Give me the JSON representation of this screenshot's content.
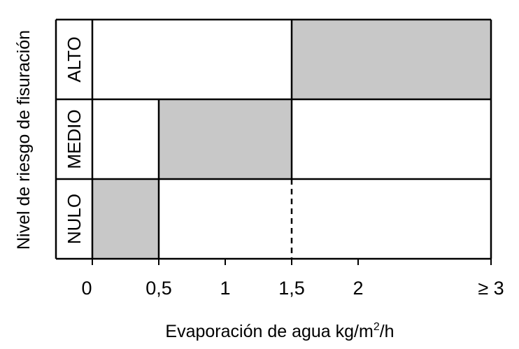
{
  "chart_data": {
    "type": "heatmap",
    "xlabel": "Evaporación de agua kg/m",
    "xlabel_sup": "2",
    "xlabel_tail": "/h",
    "ylabel": "Nivel de riesgo de fisuración",
    "x_ticks": [
      {
        "value": 0,
        "label": "0"
      },
      {
        "value": 0.5,
        "label": "0,5"
      },
      {
        "value": 1,
        "label": "1"
      },
      {
        "value": 1.5,
        "label": "1,5"
      },
      {
        "value": 2,
        "label": "2"
      },
      {
        "value": 3,
        "label": "≥ 3"
      }
    ],
    "xlim": [
      0,
      3
    ],
    "levels": [
      "ALTO",
      "MEDIO",
      "NULO"
    ],
    "shaded_ranges": [
      {
        "level": "NULO",
        "x_from": 0,
        "x_to": 0.5
      },
      {
        "level": "MEDIO",
        "x_from": 0.5,
        "x_to": 1.5
      },
      {
        "level": "ALTO",
        "x_from": 1.5,
        "x_to": 3
      }
    ],
    "colors": {
      "shade": "#c8c8c8",
      "line": "#000000",
      "background": "#ffffff"
    }
  }
}
